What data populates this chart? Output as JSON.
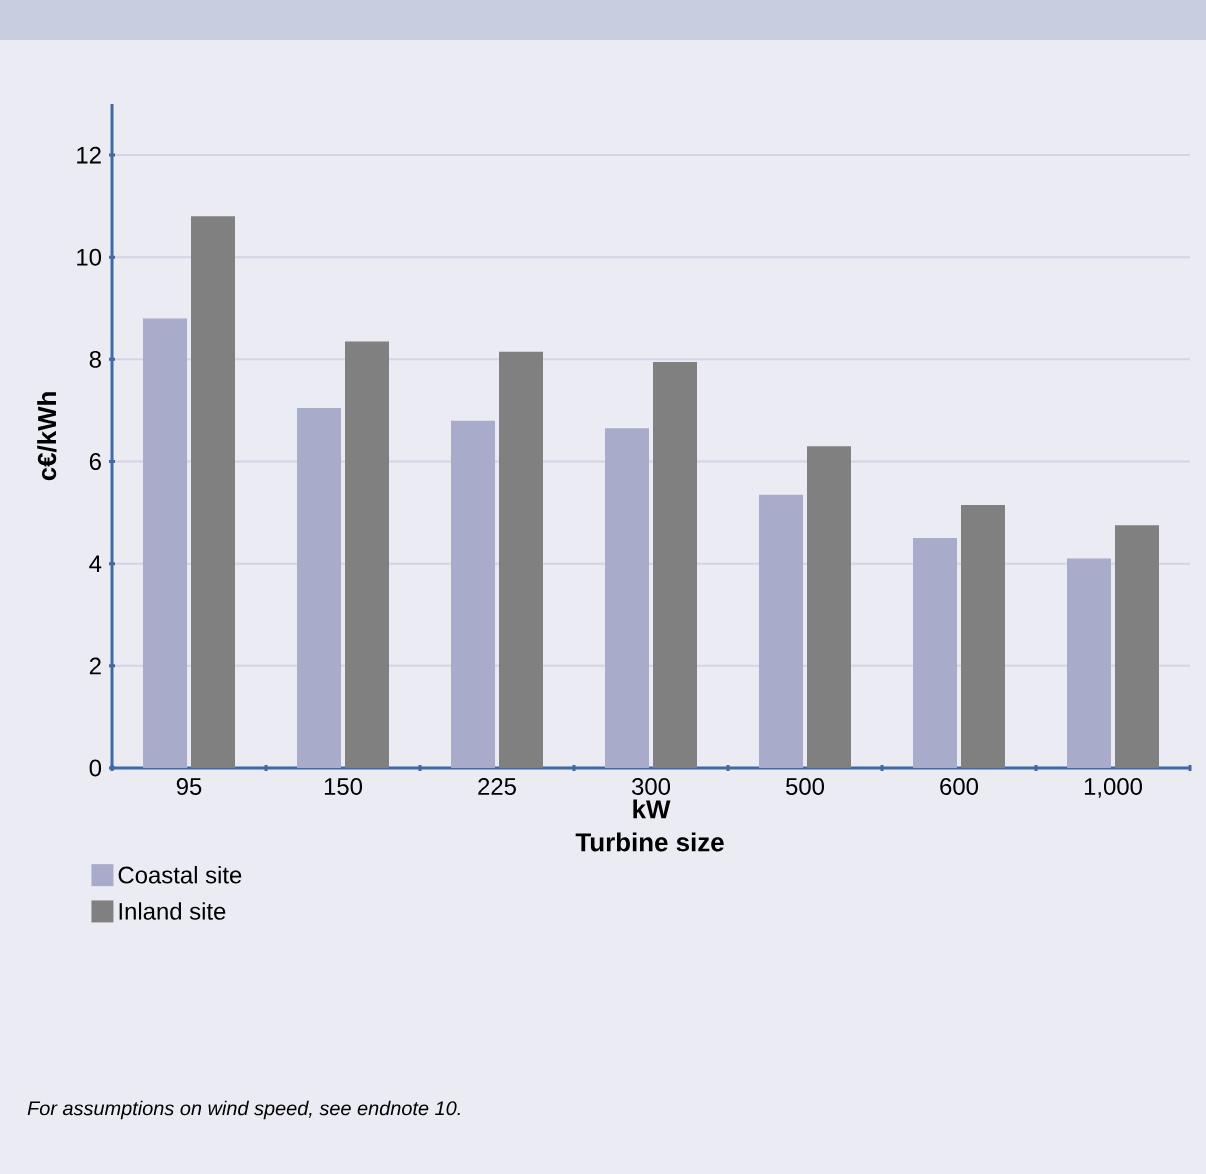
{
  "chart_data": {
    "type": "bar",
    "xlabel": "kW",
    "ylabel": "c€/kWh",
    "categories": [
      "95",
      "150",
      "225",
      "300",
      "500",
      "600",
      "1,000"
    ],
    "series": [
      {
        "name": "Coastal site",
        "color": "#a8abc9",
        "values": [
          8.8,
          7.05,
          6.8,
          6.65,
          5.35,
          4.5,
          4.1
        ]
      },
      {
        "name": "Inland site",
        "color": "#808080",
        "values": [
          10.8,
          8.35,
          8.15,
          7.95,
          6.3,
          5.15,
          4.75
        ]
      }
    ],
    "ylim": [
      0,
      13
    ],
    "yticks": [
      0,
      2,
      4,
      6,
      8,
      10,
      12
    ],
    "grid": "y",
    "legend": "bottom left",
    "annotations": [
      "Turbine size",
      "For assumptions on wind speed, see endnote 10."
    ]
  }
}
